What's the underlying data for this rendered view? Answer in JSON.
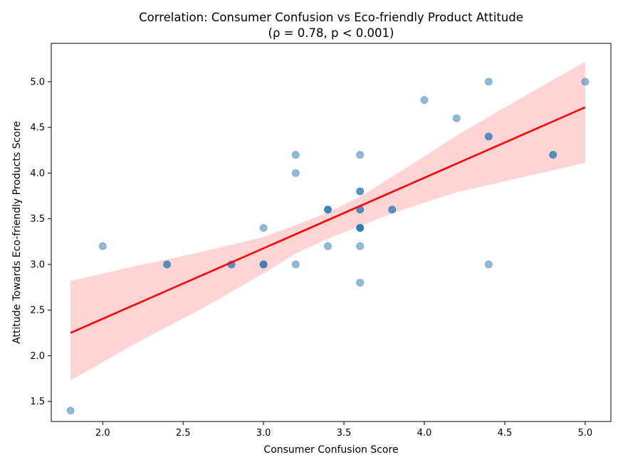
{
  "chart_data": {
    "type": "scatter",
    "title": "Correlation: Consumer Confusion vs Eco-friendly Product Attitude",
    "subtitle": "(ρ = 0.78, p < 0.001)",
    "xlabel": "Consumer Confusion Score",
    "ylabel": "Attitude Towards Eco-friendly Products Score",
    "xlim": [
      1.68,
      5.16
    ],
    "ylim": [
      1.28,
      5.42
    ],
    "xticks": [
      2.0,
      2.5,
      3.0,
      3.5,
      4.0,
      4.5,
      5.0
    ],
    "xtick_labels": [
      "2.0",
      "2.5",
      "3.0",
      "3.5",
      "4.0",
      "4.5",
      "5.0"
    ],
    "yticks": [
      1.5,
      2.0,
      2.5,
      3.0,
      3.5,
      4.0,
      4.5,
      5.0
    ],
    "ytick_labels": [
      "1.5",
      "2.0",
      "2.5",
      "3.0",
      "3.5",
      "4.0",
      "4.5",
      "5.0"
    ],
    "grid": false,
    "points": [
      {
        "x": 1.8,
        "y": 1.4
      },
      {
        "x": 2.0,
        "y": 3.2
      },
      {
        "x": 2.4,
        "y": 3.0
      },
      {
        "x": 2.4,
        "y": 3.0
      },
      {
        "x": 2.8,
        "y": 3.0
      },
      {
        "x": 2.8,
        "y": 3.0
      },
      {
        "x": 3.0,
        "y": 3.4
      },
      {
        "x": 3.0,
        "y": 3.0
      },
      {
        "x": 3.0,
        "y": 3.0
      },
      {
        "x": 3.0,
        "y": 3.0
      },
      {
        "x": 3.2,
        "y": 4.2
      },
      {
        "x": 3.2,
        "y": 4.0
      },
      {
        "x": 3.2,
        "y": 3.0
      },
      {
        "x": 3.4,
        "y": 3.6
      },
      {
        "x": 3.4,
        "y": 3.6
      },
      {
        "x": 3.4,
        "y": 3.6
      },
      {
        "x": 3.4,
        "y": 3.2
      },
      {
        "x": 3.6,
        "y": 4.2
      },
      {
        "x": 3.6,
        "y": 3.8
      },
      {
        "x": 3.6,
        "y": 3.8
      },
      {
        "x": 3.6,
        "y": 3.6
      },
      {
        "x": 3.6,
        "y": 3.6
      },
      {
        "x": 3.6,
        "y": 3.4
      },
      {
        "x": 3.6,
        "y": 3.4
      },
      {
        "x": 3.6,
        "y": 3.4
      },
      {
        "x": 3.6,
        "y": 3.4
      },
      {
        "x": 3.6,
        "y": 3.2
      },
      {
        "x": 3.6,
        "y": 2.8
      },
      {
        "x": 3.8,
        "y": 3.6
      },
      {
        "x": 3.8,
        "y": 3.6
      },
      {
        "x": 4.0,
        "y": 4.8
      },
      {
        "x": 4.2,
        "y": 4.6
      },
      {
        "x": 4.4,
        "y": 5.0
      },
      {
        "x": 4.4,
        "y": 4.4
      },
      {
        "x": 4.4,
        "y": 4.4
      },
      {
        "x": 4.4,
        "y": 3.0
      },
      {
        "x": 4.8,
        "y": 4.2
      },
      {
        "x": 4.8,
        "y": 4.2
      },
      {
        "x": 5.0,
        "y": 5.0
      }
    ],
    "point_color": "#1f77b4",
    "point_opacity": 0.5,
    "regression_line": {
      "x": [
        1.8,
        5.0
      ],
      "y": [
        2.25,
        4.72
      ],
      "color": "#ff0000"
    },
    "confidence_band": {
      "color": "#ff0000",
      "opacity": 0.17,
      "x": [
        1.8,
        2.2,
        2.6,
        3.0,
        3.2,
        3.4,
        3.6,
        3.8,
        4.2,
        4.6,
        5.0
      ],
      "upper": [
        2.82,
        2.98,
        3.13,
        3.3,
        3.43,
        3.57,
        3.74,
        3.96,
        4.41,
        4.82,
        5.22
      ],
      "lower": [
        1.73,
        2.13,
        2.5,
        2.9,
        3.12,
        3.28,
        3.42,
        3.56,
        3.79,
        3.95,
        4.11
      ]
    }
  }
}
